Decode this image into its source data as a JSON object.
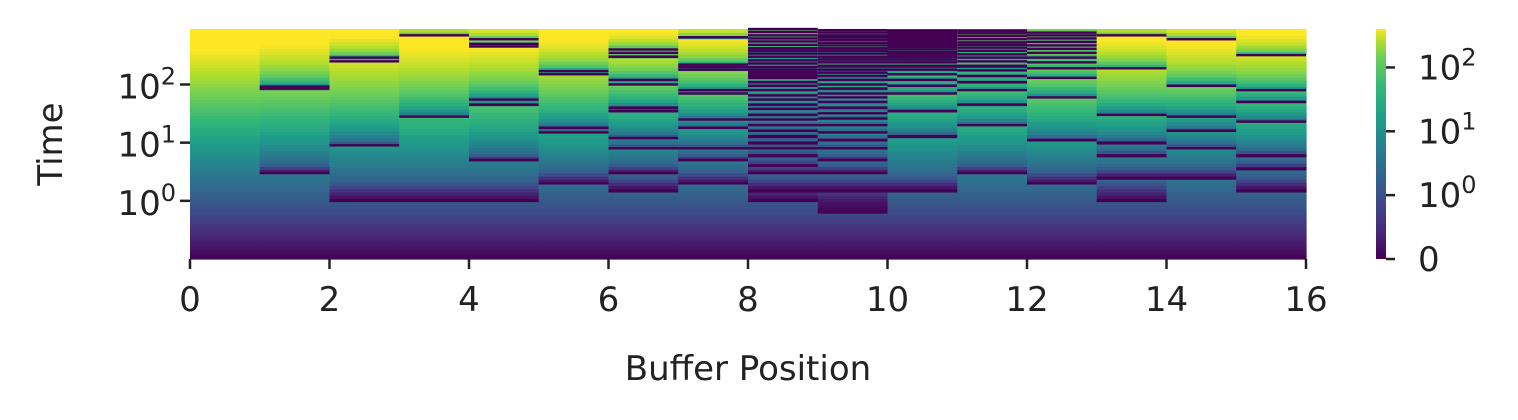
{
  "chart_data": {
    "type": "heatmap",
    "title": "",
    "xlabel": "Buffer Position",
    "ylabel": "Time",
    "x_range": [
      0,
      16
    ],
    "x_ticks": [
      "0",
      "2",
      "4",
      "6",
      "8",
      "10",
      "12",
      "14",
      "16"
    ],
    "y_scale": "symlog",
    "y_ticks": [
      {
        "base": "10",
        "exp": "0",
        "value": 1
      },
      {
        "base": "10",
        "exp": "1",
        "value": 10
      },
      {
        "base": "10",
        "exp": "2",
        "value": 100
      }
    ],
    "colormap": "viridis",
    "colorbar": {
      "scale": "symlog",
      "ticks": [
        {
          "base": "",
          "exp": "",
          "text": "0",
          "value": 0
        },
        {
          "base": "10",
          "exp": "0",
          "value": 1
        },
        {
          "base": "10",
          "exp": "1",
          "value": 10
        },
        {
          "base": "10",
          "exp": "2",
          "value": 100
        }
      ],
      "max": 400
    },
    "columns": [
      {
        "position": 0,
        "cycle_starts": [
          0
        ]
      },
      {
        "position": 1,
        "cycle_starts": [
          0,
          3,
          85,
          92
        ]
      },
      {
        "position": 2,
        "cycle_starts": [
          0,
          1,
          9,
          250,
          290
        ]
      },
      {
        "position": 3,
        "cycle_starts": [
          0,
          1,
          28,
          700
        ]
      },
      {
        "position": 4,
        "cycle_starts": [
          0,
          1,
          5,
          45,
          55,
          450,
          500,
          600
        ]
      },
      {
        "position": 5,
        "cycle_starts": [
          0,
          2,
          15,
          18,
          150,
          170
        ]
      },
      {
        "position": 6,
        "cycle_starts": [
          0,
          1.5,
          3,
          8,
          12,
          35,
          40,
          100,
          120,
          300,
          350,
          400
        ]
      },
      {
        "position": 7,
        "cycle_starts": [
          0,
          2,
          5,
          8,
          18,
          25,
          70,
          80,
          180,
          200,
          220,
          650
        ]
      },
      {
        "position": 8,
        "cycle_starts": [
          0,
          1,
          1.5,
          3,
          4,
          6,
          8,
          10,
          13,
          16,
          20,
          25,
          30,
          38,
          45,
          55,
          65,
          80,
          95,
          110,
          130,
          140,
          150,
          165,
          180,
          200,
          230,
          260,
          300,
          340,
          380,
          420,
          480,
          550,
          620,
          700,
          800,
          900
        ]
      },
      {
        "position": 9,
        "cycle_starts": [
          0,
          0.8,
          1.5,
          3,
          5,
          8,
          11,
          15,
          20,
          26,
          32,
          40,
          50,
          60,
          70,
          85,
          100,
          120,
          140,
          160,
          180,
          210,
          240,
          270,
          300,
          340,
          380,
          420,
          470,
          520,
          580,
          640,
          700,
          780,
          860
        ]
      },
      {
        "position": 10,
        "cycle_starts": [
          0,
          1.5,
          13,
          35,
          70,
          95,
          120,
          150,
          180,
          210,
          240,
          270,
          300,
          330,
          360,
          400,
          440,
          480,
          520,
          560,
          600,
          640,
          680,
          720,
          760,
          800,
          850
        ]
      },
      {
        "position": 11,
        "cycle_starts": [
          0,
          3,
          20,
          45,
          80,
          110,
          140,
          175,
          210,
          250,
          290,
          330,
          380,
          430,
          480,
          530,
          600,
          680,
          760,
          840
        ]
      },
      {
        "position": 12,
        "cycle_starts": [
          0,
          2,
          11,
          60,
          130,
          190,
          240,
          290,
          350,
          410,
          470,
          540,
          620,
          700,
          780
        ]
      },
      {
        "position": 13,
        "cycle_starts": [
          0,
          1,
          2.5,
          6,
          10,
          30,
          190,
          700
        ]
      },
      {
        "position": 14,
        "cycle_starts": [
          0,
          2.5,
          8,
          16,
          28,
          95,
          600
        ]
      },
      {
        "position": 15,
        "cycle_starts": [
          0,
          1.5,
          3.5,
          6,
          23,
          50,
          80,
          320
        ]
      }
    ]
  }
}
